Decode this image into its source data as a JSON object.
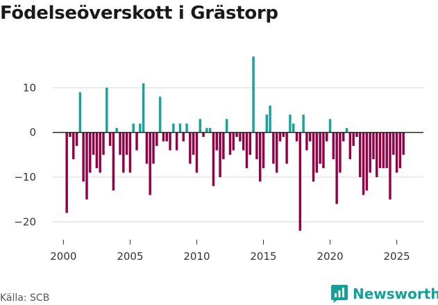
{
  "title": "Födelseöverskott i Grästorp",
  "source": "Källa: SCB",
  "brand": "Newsworthy",
  "colors": {
    "positive": "#17a39b",
    "negative": "#940045",
    "grid": "#dcdcdc",
    "zero": "#222222",
    "brand": "#13a096"
  },
  "chart_data": {
    "type": "bar",
    "title": "Födelseöverskott i Grästorp",
    "xlabel": "",
    "ylabel": "",
    "xlim": [
      1999.2,
      2027.0
    ],
    "ylim": [
      -24,
      20
    ],
    "x_ticks": [
      2000,
      2005,
      2010,
      2015,
      2020,
      2025
    ],
    "y_ticks": [
      10,
      0,
      -10,
      -20
    ],
    "y_tick_labels": [
      "10",
      "0",
      "−10",
      "−20"
    ],
    "grid": "horizontal",
    "bar_interval": "quarter",
    "series": [
      {
        "x_start": 2000.25,
        "values": [
          -18,
          -1,
          -6,
          -3,
          9,
          -11,
          -15,
          -9,
          -5,
          -8,
          -9,
          -5,
          10,
          -3,
          -13,
          1,
          -5,
          -9,
          -5,
          -9,
          2,
          -4,
          2,
          11,
          -7,
          -14,
          -7,
          -3,
          8,
          -2,
          -2,
          -4,
          2,
          -4,
          2,
          -2,
          2,
          -7,
          -5,
          -9,
          3,
          -1,
          1,
          1,
          -12,
          -4,
          -10,
          -6,
          3,
          -5,
          -4,
          -1,
          -2,
          -4,
          -8,
          -5,
          17,
          -6,
          -11,
          -8,
          4,
          6,
          -7,
          -9,
          -2,
          -1,
          -7,
          4,
          2,
          -2,
          -22,
          4,
          -4,
          -2,
          -11,
          -9,
          -7,
          -8,
          -2,
          3,
          -6,
          -16,
          -9,
          -2,
          1,
          -6,
          -3,
          -1,
          -10,
          -14,
          -13,
          -9,
          -6,
          -10,
          -8,
          -8,
          -8,
          -15,
          -5,
          -9,
          -8,
          -5
        ]
      }
    ]
  }
}
